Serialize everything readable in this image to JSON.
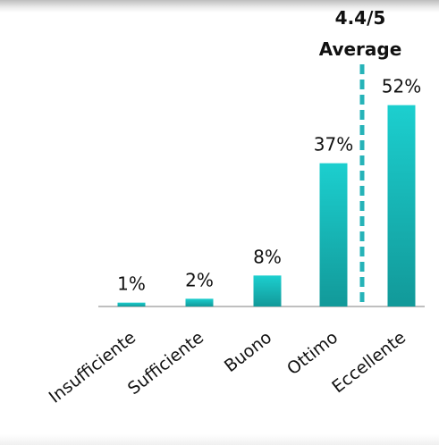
{
  "chart_data": {
    "type": "bar",
    "categories": [
      "Insufficiente",
      "Sufficiente",
      "Buono",
      "Ottimo",
      "Eccellente"
    ],
    "values": [
      1,
      2,
      8,
      37,
      52
    ],
    "value_labels": [
      "1%",
      "2%",
      "8%",
      "37%",
      "52%"
    ],
    "ylim": [
      0,
      60
    ],
    "grid": false,
    "bar_color": "#19c4c4",
    "average": {
      "value_label": "4.4/5",
      "label": "Average",
      "position": "between Ottimo and Eccellente",
      "line_color": "#26b3b8",
      "line_style": "dashed"
    }
  }
}
